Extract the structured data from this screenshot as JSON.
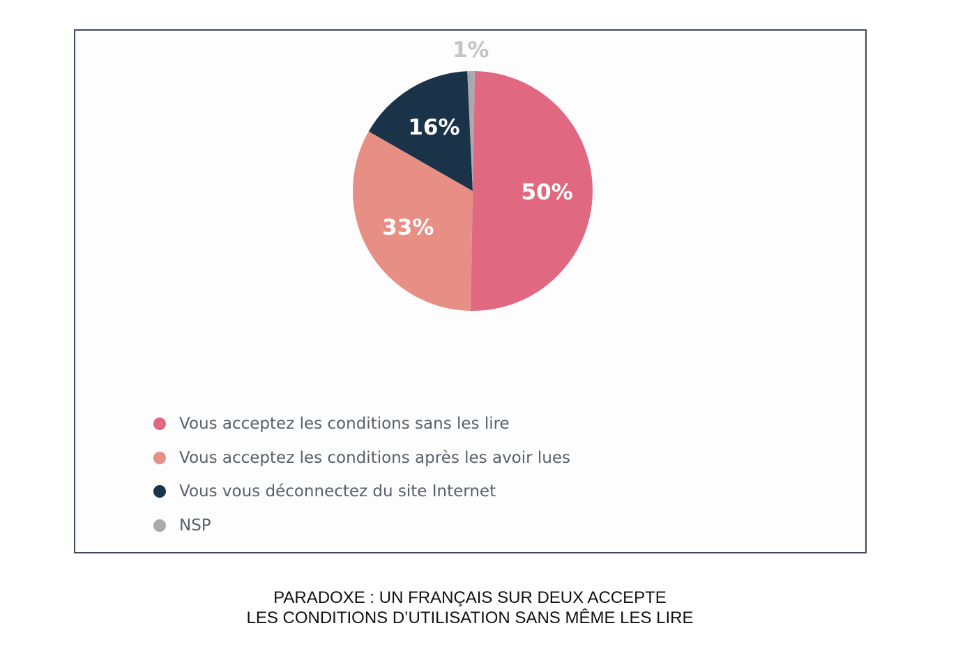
{
  "chart_data": {
    "type": "pie",
    "slices": [
      {
        "label": "Vous acceptez les conditions sans les lire",
        "value": 50,
        "display": "50%",
        "color": "#e06881"
      },
      {
        "label": "Vous acceptez les conditions après les avoir lues",
        "value": 33,
        "display": "33%",
        "color": "#e88f85"
      },
      {
        "label": "Vous vous déconnectez du site Internet",
        "value": 16,
        "display": "16%",
        "color": "#1b3349"
      },
      {
        "label": "NSP",
        "value": 1,
        "display": "1%",
        "color": "#a7abad"
      }
    ],
    "label_colors": {
      "inside": "#ffffff",
      "outside": "#c2c4c6"
    },
    "legend_position": "bottom-left"
  },
  "caption": {
    "line1": "PARADOXE : UN FRANÇAIS SUR DEUX ACCEPTE",
    "line2": "LES CONDITIONS D’UTILISATION SANS MÊME LES LIRE"
  }
}
